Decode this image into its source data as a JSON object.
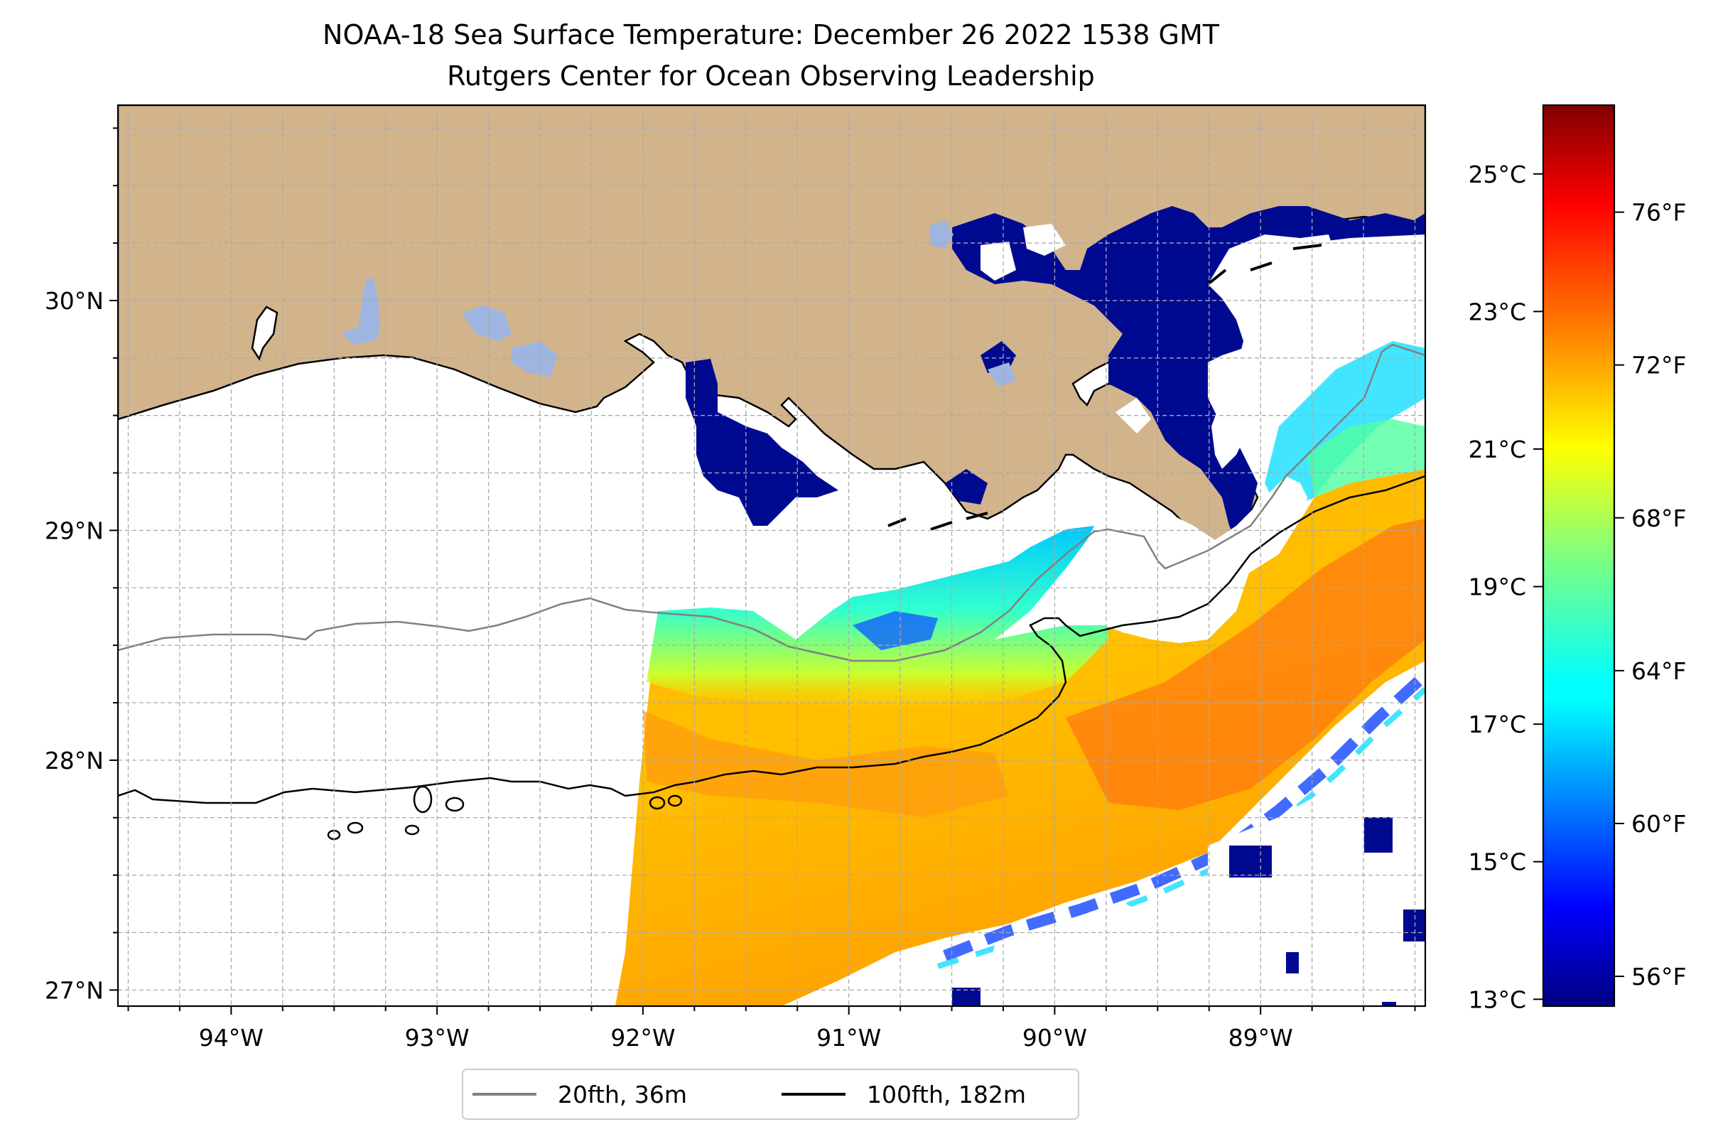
{
  "title_line1": "NOAA-18 Sea Surface Temperature: December 26 2022 1538 GMT",
  "title_line2": "Rutgers Center for Ocean Observing Leadership",
  "map": {
    "lon_range": [
      -94.55,
      -88.2
    ],
    "lat_range": [
      26.93,
      30.85
    ],
    "lon_ticks": [
      {
        "value": -94,
        "label": "94°W"
      },
      {
        "value": -93,
        "label": "93°W"
      },
      {
        "value": -92,
        "label": "92°W"
      },
      {
        "value": -91,
        "label": "91°W"
      },
      {
        "value": -90,
        "label": "90°W"
      },
      {
        "value": -89,
        "label": "89°W"
      }
    ],
    "lat_ticks": [
      {
        "value": 30,
        "label": "30°N"
      },
      {
        "value": 29,
        "label": "29°N"
      },
      {
        "value": 28,
        "label": "28°N"
      },
      {
        "value": 27,
        "label": "27°N"
      }
    ],
    "land_color": "#d2b48c",
    "water_color": "#ffffff",
    "lake_color": "#9db5e0",
    "gridlines": "dashed"
  },
  "colorbar": {
    "colormap": "jet",
    "celsius_range": [
      12.9,
      26.0
    ],
    "celsius_ticks": [
      "13°C",
      "15°C",
      "17°C",
      "19°C",
      "21°C",
      "23°C",
      "25°C"
    ],
    "celsius_values": [
      13,
      15,
      17,
      19,
      21,
      23,
      25
    ],
    "fahrenheit_ticks": [
      "56°F",
      "60°F",
      "64°F",
      "68°F",
      "72°F",
      "76°F"
    ],
    "fahrenheit_values": [
      56,
      60,
      64,
      68,
      72,
      76
    ]
  },
  "legend": {
    "items": [
      {
        "label": "20fth, 36m",
        "color": "#808080"
      },
      {
        "label": "100fth, 182m",
        "color": "#000000"
      }
    ],
    "location": "bottom-center"
  }
}
